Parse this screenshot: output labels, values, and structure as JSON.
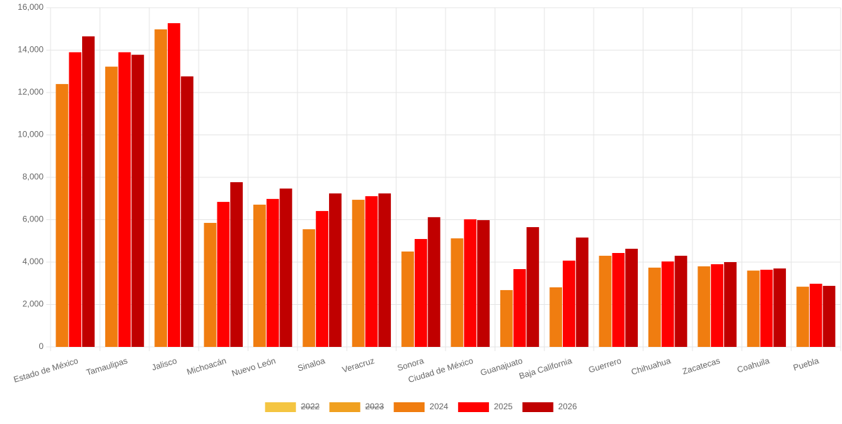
{
  "chart_data": {
    "type": "bar",
    "categories": [
      "Estado de México",
      "Tamaulipas",
      "Jalisco",
      "Michoacán",
      "Nuevo León",
      "Sinaloa",
      "Veracruz",
      "Sonora",
      "Ciudad de México",
      "Guanajuato",
      "Baja California",
      "Guerrero",
      "Chihuahua",
      "Zacatecas",
      "Coahuila",
      "Puebla"
    ],
    "series": [
      {
        "name": "2022",
        "color": "#f4c542",
        "hidden": true,
        "values": [
          null,
          null,
          null,
          null,
          null,
          null,
          null,
          null,
          null,
          null,
          null,
          null,
          null,
          null,
          null,
          null
        ]
      },
      {
        "name": "2023",
        "color": "#f0a020",
        "hidden": true,
        "values": [
          null,
          null,
          null,
          null,
          null,
          null,
          null,
          null,
          null,
          null,
          null,
          null,
          null,
          null,
          null,
          null
        ]
      },
      {
        "name": "2024",
        "color": "#f07d10",
        "values": [
          12400,
          13220,
          14980,
          5850,
          6710,
          5550,
          6940,
          4500,
          5120,
          2680,
          2810,
          4300,
          3740,
          3800,
          3600,
          2840
        ]
      },
      {
        "name": "2025",
        "color": "#ff0000",
        "values": [
          13900,
          13900,
          15270,
          6840,
          6980,
          6410,
          7110,
          5090,
          6020,
          3670,
          4070,
          4430,
          4030,
          3900,
          3640,
          2980
        ]
      },
      {
        "name": "2026",
        "color": "#c00000",
        "values": [
          14650,
          13780,
          12760,
          7770,
          7470,
          7240,
          7240,
          6120,
          5980,
          5650,
          5160,
          4630,
          4300,
          4000,
          3700,
          2880
        ]
      }
    ],
    "ylim": [
      0,
      16000
    ],
    "yticks": [
      0,
      {
        "value": 2000,
        "label": "2,000"
      },
      {
        "value": 4000,
        "label": "4,000"
      },
      {
        "value": 6000,
        "label": "6,000"
      },
      {
        "value": 8000,
        "label": "8,000"
      },
      {
        "value": 10000,
        "label": "10,000"
      },
      {
        "value": 12000,
        "label": "12,000"
      },
      {
        "value": 14000,
        "label": "14,000"
      },
      {
        "value": 16000,
        "label": "16,000"
      }
    ],
    "grid": true,
    "legend": "bottom"
  }
}
